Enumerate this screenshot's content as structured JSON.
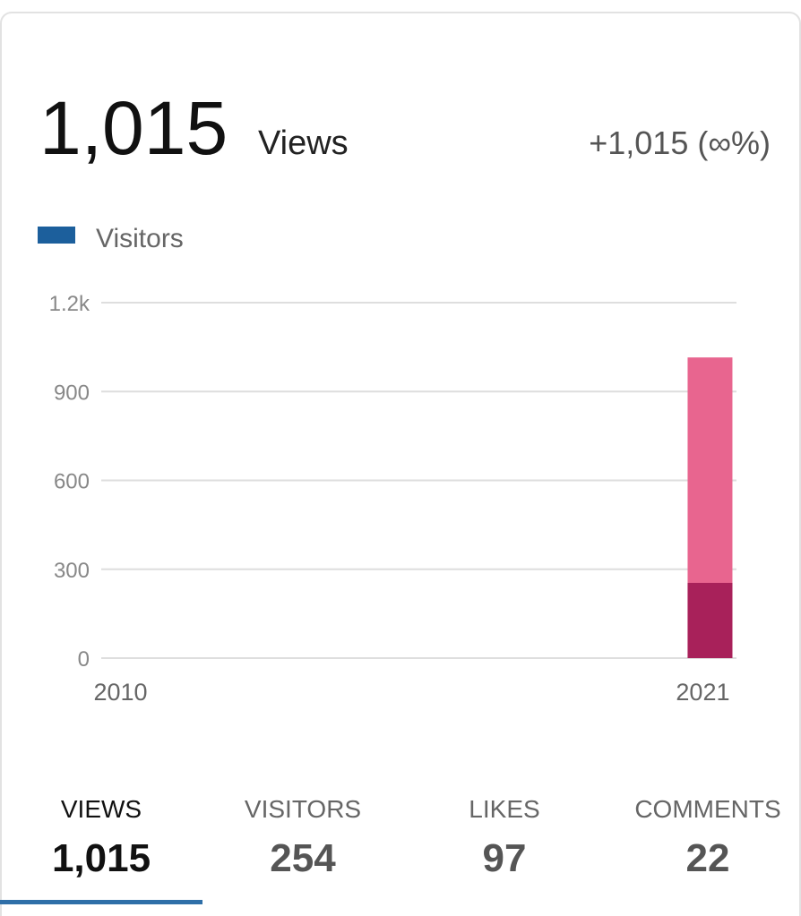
{
  "header": {
    "total": "1,015",
    "change": "+1,015 (∞%)"
  },
  "chart_data": {
    "type": "bar",
    "categories": [
      "2010",
      null,
      null,
      null,
      null,
      null,
      null,
      null,
      null,
      null,
      null,
      "2021"
    ],
    "series": [
      {
        "name": "Views",
        "color": "#e8658f",
        "values": [
          null,
          null,
          null,
          null,
          null,
          null,
          null,
          null,
          null,
          null,
          null,
          1015
        ]
      },
      {
        "name": "Visitors",
        "color": "#a8215a",
        "values": [
          null,
          null,
          null,
          null,
          null,
          null,
          null,
          null,
          null,
          null,
          null,
          254
        ]
      }
    ],
    "legend": {
      "series": 1,
      "color": "#1c5f9c"
    },
    "ylim": [
      0,
      1200
    ],
    "yticks": [
      0,
      300,
      600,
      900,
      {
        "value": 1200,
        "label": "1.2k"
      }
    ],
    "grid": true
  },
  "tabs": [
    {
      "label": "VIEWS",
      "value": "1,015",
      "active": true
    },
    {
      "label": "VISITORS",
      "value": "254",
      "active": false
    },
    {
      "label": "LIKES",
      "value": "97",
      "active": false
    },
    {
      "label": "COMMENTS",
      "value": "22",
      "active": false
    }
  ]
}
